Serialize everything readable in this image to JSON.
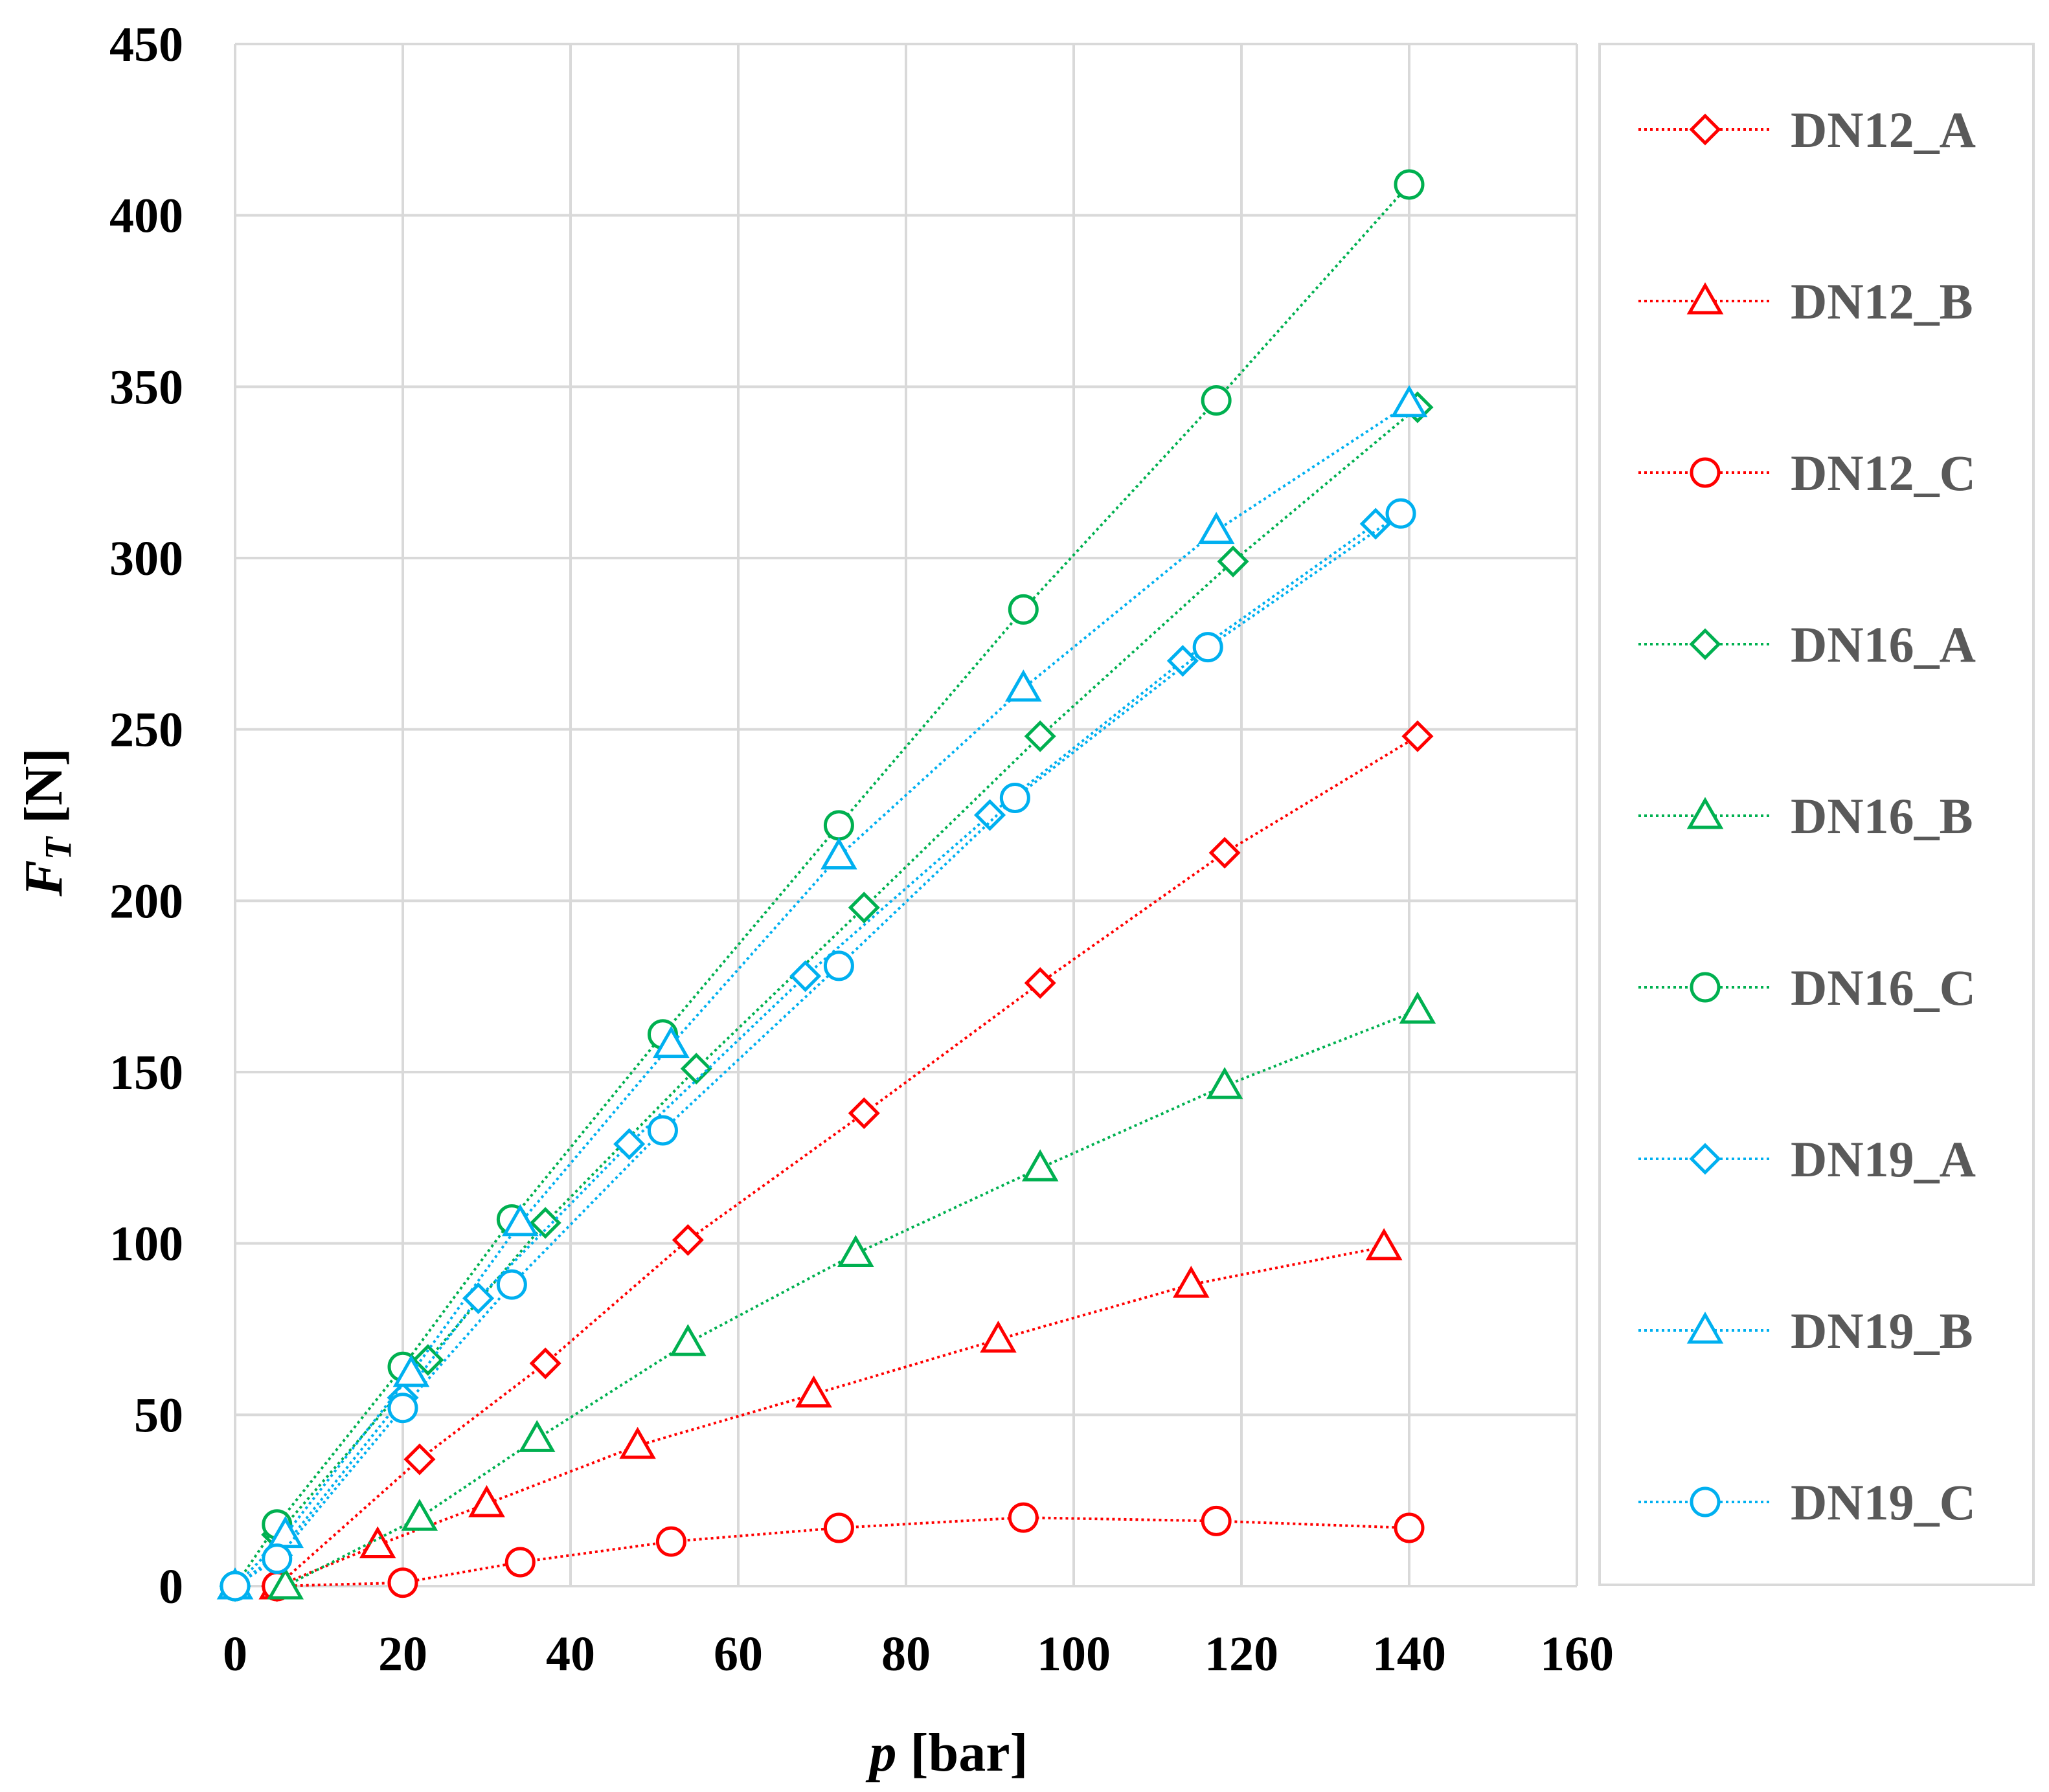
{
  "chart_data": {
    "type": "line",
    "title": "",
    "xlabel": "p",
    "xlabel_unit": "[bar]",
    "ylabel_main": "F",
    "ylabel_sub": "T",
    "ylabel_unit": "[N]",
    "xlim": [
      0,
      160
    ],
    "ylim": [
      0,
      450
    ],
    "xticks": [
      0,
      20,
      40,
      60,
      80,
      100,
      120,
      140,
      160
    ],
    "yticks": [
      0,
      50,
      100,
      150,
      200,
      250,
      300,
      350,
      400,
      450
    ],
    "grid": true,
    "legend_position": "right",
    "line_style": "dotted",
    "series": [
      {
        "name": "DN12_A",
        "color": "#ff0000",
        "marker": "diamond",
        "x": [
          5,
          22,
          37,
          54,
          75,
          96,
          118,
          141
        ],
        "y": [
          0,
          37,
          65,
          101,
          138,
          176,
          214,
          248
        ]
      },
      {
        "name": "DN12_B",
        "color": "#ff0000",
        "marker": "triangle",
        "x": [
          5,
          17,
          30,
          48,
          69,
          91,
          114,
          137
        ],
        "y": [
          0,
          12,
          24,
          41,
          56,
          72,
          88,
          99
        ]
      },
      {
        "name": "DN12_C",
        "color": "#ff0000",
        "marker": "circle",
        "x": [
          5,
          20,
          34,
          52,
          72,
          94,
          117,
          140
        ],
        "y": [
          0,
          1,
          7,
          13,
          17,
          20,
          19,
          17
        ]
      },
      {
        "name": "DN16_A",
        "color": "#00b050",
        "marker": "diamond",
        "x": [
          5,
          23,
          37,
          55,
          75,
          96,
          119,
          141
        ],
        "y": [
          15,
          66,
          106,
          151,
          198,
          248,
          299,
          344
        ]
      },
      {
        "name": "DN16_B",
        "color": "#00b050",
        "marker": "triangle",
        "x": [
          6,
          22,
          36,
          54,
          74,
          96,
          118,
          141
        ],
        "y": [
          0,
          20,
          43,
          71,
          97,
          122,
          146,
          168
        ]
      },
      {
        "name": "DN16_C",
        "color": "#00b050",
        "marker": "circle",
        "x": [
          0,
          5,
          20,
          33,
          51,
          72,
          94,
          117,
          140
        ],
        "y": [
          0,
          18,
          64,
          107,
          161,
          222,
          285,
          346,
          409
        ]
      },
      {
        "name": "DN19_A",
        "color": "#00b0f0",
        "marker": "diamond",
        "x": [
          0,
          5,
          20,
          29,
          47,
          68,
          90,
          113,
          136
        ],
        "y": [
          0,
          9,
          55,
          84,
          129,
          178,
          225,
          270,
          310
        ]
      },
      {
        "name": "DN19_B",
        "color": "#00b0f0",
        "marker": "triangle",
        "x": [
          0,
          6,
          21,
          34,
          52,
          72,
          94,
          117,
          140
        ],
        "y": [
          0,
          15,
          62,
          106,
          158,
          213,
          262,
          308,
          345
        ]
      },
      {
        "name": "DN19_C",
        "color": "#00b0f0",
        "marker": "circle",
        "x": [
          0,
          5,
          20,
          33,
          51,
          72,
          93,
          116,
          139
        ],
        "y": [
          0,
          8,
          52,
          88,
          133,
          181,
          230,
          274,
          313
        ]
      }
    ]
  }
}
